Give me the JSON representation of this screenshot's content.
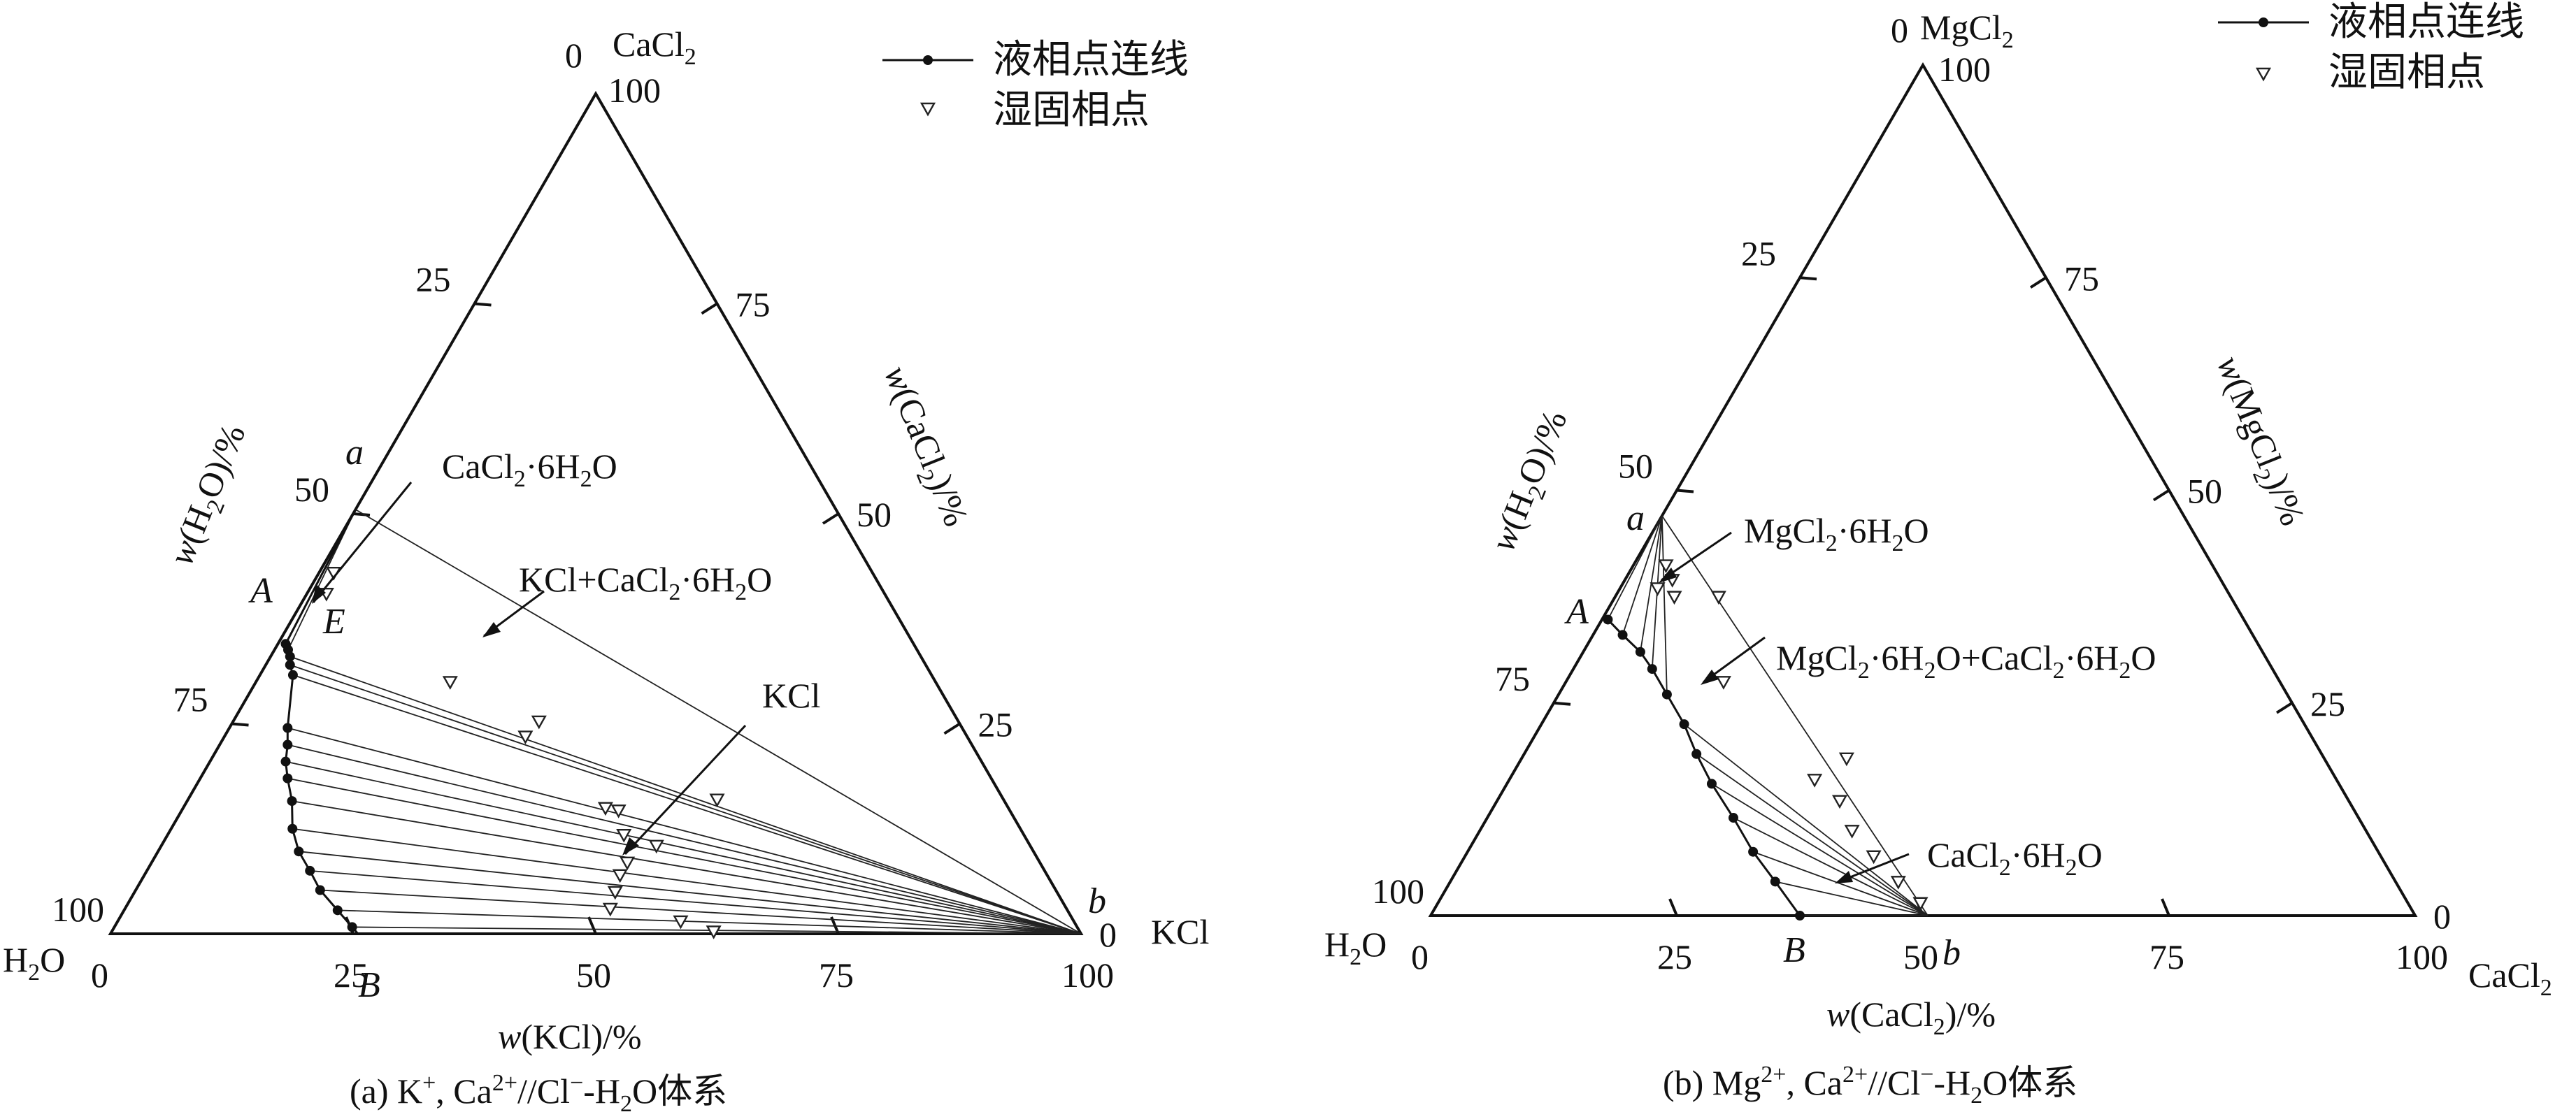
{
  "legend": {
    "liquid_label": "液相点连线",
    "wetsolid_label": "湿固相点"
  },
  "chart_data": [
    {
      "type": "scatter",
      "panel": "a",
      "caption": "(a) K⁺, Ca²⁺//Cl⁻-H₂O体系",
      "components": {
        "apex": "CaCl2",
        "left": "H2O",
        "right": "KCl"
      },
      "corner_labels": {
        "apex": "CaCl₂",
        "left": "H₂O",
        "right": "KCl"
      },
      "axis_titles": {
        "bottom": "w(KCl)/%",
        "left": "w(H₂O)/%",
        "right": "w(CaCl₂)/%"
      },
      "ticks": {
        "bottom": [
          0,
          25,
          50,
          75,
          100
        ],
        "left": [
          100,
          75,
          50,
          25,
          0
        ],
        "right": [
          0,
          25,
          50,
          75,
          100
        ]
      },
      "points": {
        "a": {
          "label": "a",
          "KCl": 0,
          "CaCl2": 50.5
        },
        "A": {
          "label": "A",
          "KCl": 0.8,
          "CaCl2": 34.5
        },
        "E": {
          "label": "E",
          "KCl": 2.0,
          "CaCl2": 32.5
        },
        "B": {
          "label": "B",
          "KCl": 25.5,
          "CaCl2": 0
        },
        "b": {
          "label": "b",
          "KCl": 100,
          "CaCl2": 0
        }
      },
      "liquid_points": [
        {
          "KCl": 0.8,
          "CaCl2": 34.5
        },
        {
          "KCl": 1.4,
          "CaCl2": 33.8
        },
        {
          "KCl": 2.0,
          "CaCl2": 33.0
        },
        {
          "KCl": 2.5,
          "CaCl2": 32.0
        },
        {
          "KCl": 3.4,
          "CaCl2": 30.8
        },
        {
          "KCl": 6.0,
          "CaCl2": 24.5
        },
        {
          "KCl": 7.0,
          "CaCl2": 22.5
        },
        {
          "KCl": 7.8,
          "CaCl2": 20.5
        },
        {
          "KCl": 9.0,
          "CaCl2": 18.5
        },
        {
          "KCl": 10.8,
          "CaCl2": 15.8
        },
        {
          "KCl": 12.5,
          "CaCl2": 12.5
        },
        {
          "KCl": 14.5,
          "CaCl2": 9.8
        },
        {
          "KCl": 16.8,
          "CaCl2": 7.5
        },
        {
          "KCl": 19.0,
          "CaCl2": 5.2
        },
        {
          "KCl": 22.0,
          "CaCl2": 2.8
        },
        {
          "KCl": 24.5,
          "CaCl2": 0.8
        }
      ],
      "wet_solid_points": [
        {
          "KCl": 1.5,
          "CaCl2": 43.0
        },
        {
          "KCl": 2.0,
          "CaCl2": 40.5
        },
        {
          "KCl": 20.0,
          "CaCl2": 30.0
        },
        {
          "KCl": 31.5,
          "CaCl2": 25.3
        },
        {
          "KCl": 31.0,
          "CaCl2": 23.5
        },
        {
          "KCl": 54.5,
          "CaCl2": 16.0
        },
        {
          "KCl": 43.5,
          "CaCl2": 15.0
        },
        {
          "KCl": 45.0,
          "CaCl2": 14.7
        },
        {
          "KCl": 47.0,
          "CaCl2": 11.8
        },
        {
          "KCl": 51.0,
          "CaCl2": 10.5
        },
        {
          "KCl": 49.0,
          "CaCl2": 8.5
        },
        {
          "KCl": 49.0,
          "CaCl2": 7.0
        },
        {
          "KCl": 49.5,
          "CaCl2": 5.0
        },
        {
          "KCl": 50.0,
          "CaCl2": 3.0
        },
        {
          "KCl": 58.0,
          "CaCl2": 1.5
        },
        {
          "KCl": 62.0,
          "CaCl2": 0.3
        }
      ],
      "annotations": [
        {
          "text": "CaCl₂·6H₂O"
        },
        {
          "text": "KCl+CaCl₂·6H₂O"
        },
        {
          "text": "KCl"
        }
      ]
    },
    {
      "type": "scatter",
      "panel": "b",
      "caption": "(b) Mg²⁺, Ca²⁺//Cl⁻-H₂O体系",
      "components": {
        "apex": "MgCl2",
        "left": "H2O",
        "right": "CaCl2"
      },
      "corner_labels": {
        "apex": "MgCl₂",
        "left": "H₂O",
        "right": "CaCl₂"
      },
      "axis_titles": {
        "bottom": "w(CaCl₂)/%",
        "left": "w(H₂O)/%",
        "right": "w(MgCl₂)/%"
      },
      "ticks": {
        "bottom": [
          0,
          25,
          50,
          75,
          100
        ],
        "left": [
          100,
          75,
          50,
          25,
          0
        ],
        "right": [
          0,
          25,
          50,
          75,
          100
        ]
      },
      "points": {
        "a": {
          "label": "a",
          "CaCl2": 0,
          "MgCl2": 47.0
        },
        "A": {
          "label": "A",
          "CaCl2": 0.6,
          "MgCl2": 34.8
        },
        "B": {
          "label": "B",
          "CaCl2": 37.5,
          "MgCl2": 0
        },
        "b": {
          "label": "b",
          "CaCl2": 50.5,
          "MgCl2": 0
        }
      },
      "liquid_points": [
        {
          "CaCl2": 0.6,
          "MgCl2": 34.8
        },
        {
          "CaCl2": 3.0,
          "MgCl2": 33.0
        },
        {
          "CaCl2": 5.8,
          "MgCl2": 31.0
        },
        {
          "CaCl2": 8.0,
          "MgCl2": 29.0
        },
        {
          "CaCl2": 11.0,
          "MgCl2": 26.0
        },
        {
          "CaCl2": 14.5,
          "MgCl2": 22.5
        },
        {
          "CaCl2": 17.5,
          "MgCl2": 19.0
        },
        {
          "CaCl2": 20.8,
          "MgCl2": 15.5
        },
        {
          "CaCl2": 25.0,
          "MgCl2": 11.5
        },
        {
          "CaCl2": 29.0,
          "MgCl2": 7.5
        },
        {
          "CaCl2": 33.0,
          "MgCl2": 4.0
        },
        {
          "CaCl2": 37.5,
          "MgCl2": 0
        }
      ],
      "wet_solid_points": [
        {
          "CaCl2": 3.3,
          "MgCl2": 41.2
        },
        {
          "CaCl2": 4.8,
          "MgCl2": 39.5
        },
        {
          "CaCl2": 3.8,
          "MgCl2": 38.5
        },
        {
          "CaCl2": 6.0,
          "MgCl2": 37.5
        },
        {
          "CaCl2": 10.5,
          "MgCl2": 37.5
        },
        {
          "CaCl2": 16.0,
          "MgCl2": 27.5
        },
        {
          "CaCl2": 33.0,
          "MgCl2": 18.5
        },
        {
          "CaCl2": 31.0,
          "MgCl2": 16.0
        },
        {
          "CaCl2": 34.8,
          "MgCl2": 13.5
        },
        {
          "CaCl2": 37.8,
          "MgCl2": 10.0
        },
        {
          "CaCl2": 41.5,
          "MgCl2": 7.0
        },
        {
          "CaCl2": 45.5,
          "MgCl2": 4.0
        },
        {
          "CaCl2": 49.0,
          "MgCl2": 1.5
        }
      ],
      "annotations": [
        {
          "text": "MgCl₂·6H₂O"
        },
        {
          "text": "MgCl₂·6H₂O+CaCl₂·6H₂O"
        },
        {
          "text": "CaCl₂·6H₂O"
        }
      ]
    }
  ]
}
